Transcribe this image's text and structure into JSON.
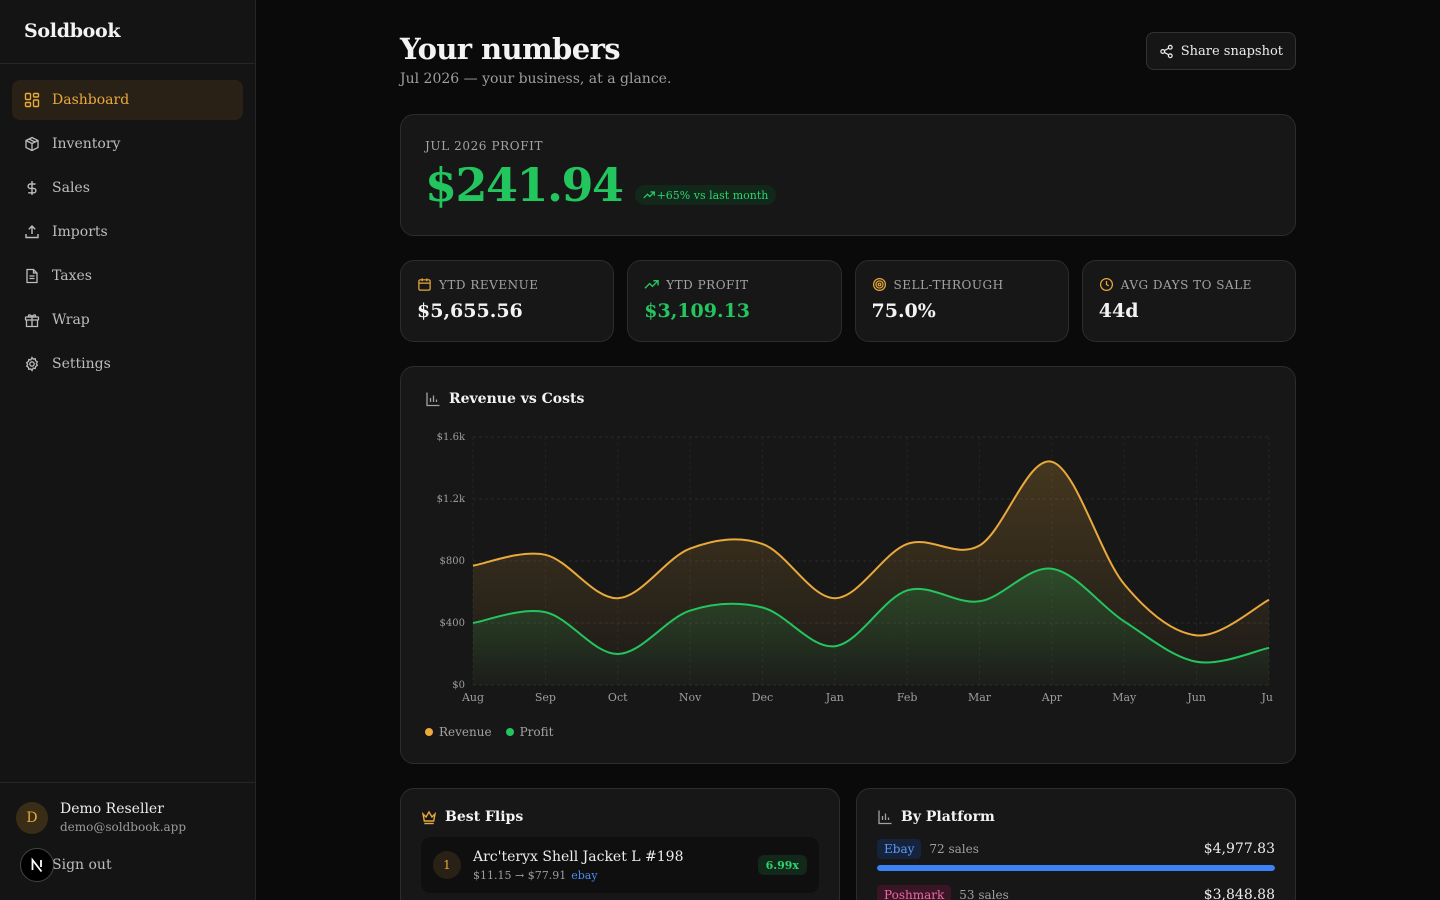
{
  "brand": "Soldbook",
  "nav": [
    {
      "label": "Dashboard",
      "icon": "dashboard-icon",
      "active": true
    },
    {
      "label": "Inventory",
      "icon": "box-icon",
      "active": false
    },
    {
      "label": "Sales",
      "icon": "dollar-icon",
      "active": false
    },
    {
      "label": "Imports",
      "icon": "upload-icon",
      "active": false
    },
    {
      "label": "Taxes",
      "icon": "document-icon",
      "active": false
    },
    {
      "label": "Wrap",
      "icon": "gift-icon",
      "active": false
    },
    {
      "label": "Settings",
      "icon": "gear-icon",
      "active": false
    }
  ],
  "user": {
    "initial": "D",
    "name": "Demo Reseller",
    "email": "demo@soldbook.app",
    "signout": "Sign out"
  },
  "header": {
    "title": "Your numbers",
    "subtitle": "Jul 2026 — your business, at a glance.",
    "share_label": "Share snapshot"
  },
  "profit": {
    "label": "Jul 2026 profit",
    "value": "$241.94",
    "delta": "+65% vs last month"
  },
  "stats": [
    {
      "label": "YTD Revenue",
      "value": "$5,655.56",
      "icon": "calendar-icon",
      "accent": false
    },
    {
      "label": "YTD Profit",
      "value": "$3,109.13",
      "icon": "trending-up-icon",
      "accent": true
    },
    {
      "label": "Sell-through",
      "value": "75.0%",
      "icon": "target-icon",
      "accent": false
    },
    {
      "label": "Avg days to sale",
      "value": "44d",
      "icon": "clock-icon",
      "accent": false
    }
  ],
  "chart_card": {
    "title": "Revenue vs Costs"
  },
  "chart_data": {
    "type": "area",
    "title": "Revenue vs Costs",
    "categories": [
      "Aug",
      "Sep",
      "Oct",
      "Nov",
      "Dec",
      "Jan",
      "Feb",
      "Mar",
      "Apr",
      "May",
      "Jun",
      "Jul"
    ],
    "y_ticks": [
      "$0",
      "$400",
      "$800",
      "$1.2k",
      "$1.6k"
    ],
    "ylim": [
      0,
      1600
    ],
    "series": [
      {
        "name": "Revenue",
        "color": "#e9a93b",
        "values": [
          770,
          840,
          560,
          880,
          910,
          560,
          910,
          900,
          1440,
          650,
          320,
          550
        ]
      },
      {
        "name": "Profit",
        "color": "#23c55e",
        "values": [
          400,
          470,
          200,
          480,
          500,
          250,
          610,
          540,
          750,
          410,
          150,
          240
        ]
      }
    ],
    "grid": true,
    "legend": "bottom-left"
  },
  "legend": [
    {
      "label": "Revenue",
      "color": "#e9a93b"
    },
    {
      "label": "Profit",
      "color": "#23c55e"
    }
  ],
  "flips": {
    "title": "Best Flips",
    "items": [
      {
        "rank": "1",
        "name": "Arc'teryx Shell Jacket L #198",
        "prices": "$11.15 → $77.91",
        "platform": "ebay",
        "multiple": "6.99x"
      }
    ]
  },
  "platforms": {
    "title": "By Platform",
    "items": [
      {
        "name": "Ebay",
        "sales": "72 sales",
        "amount": "$4,977.83",
        "share": 1.0,
        "color": "#3b82f6",
        "tag_bg": "#15233d",
        "tag_fg": "#5b9cf5"
      },
      {
        "name": "Poshmark",
        "sales": "53 sales",
        "amount": "$3,848.88",
        "share": 0.773,
        "color": "#db2777",
        "tag_bg": "#3a1526",
        "tag_fg": "#ec6aa6"
      }
    ]
  }
}
